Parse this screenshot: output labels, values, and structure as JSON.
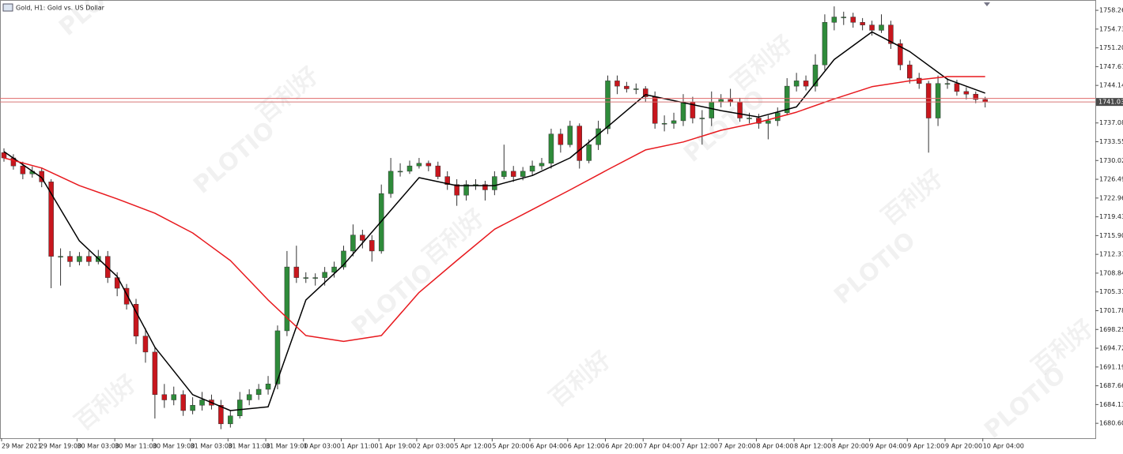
{
  "chart_data": {
    "type": "candlestick",
    "title": "Gold, H1:  Gold vs. US Dollar",
    "watermark_texts": [
      "百利好",
      "PLOTIO"
    ],
    "categories": [
      "29 Mar 2021",
      null,
      null,
      null,
      "29 Mar 19:00",
      null,
      null,
      null,
      "30 Mar 03:00",
      null,
      null,
      null,
      "30 Mar 11:00",
      null,
      null,
      null,
      "30 Mar 19:00",
      null,
      null,
      null,
      "31 Mar 03:00",
      null,
      null,
      null,
      "31 Mar 11:00",
      null,
      null,
      null,
      "31 Mar 19:00",
      null,
      null,
      null,
      "1 Apr 03:00",
      null,
      null,
      null,
      "1 Apr 11:00",
      null,
      null,
      null,
      "1 Apr 19:00",
      null,
      null,
      null,
      "2 Apr 03:00",
      null,
      null,
      null,
      "5 Apr 12:00",
      null,
      null,
      null,
      "5 Apr 20:00",
      null,
      null,
      null,
      "6 Apr 04:00",
      null,
      null,
      null,
      "6 Apr 12:00",
      null,
      null,
      null,
      "6 Apr 20:00",
      null,
      null,
      null,
      "7 Apr 04:00",
      null,
      null,
      null,
      "7 Apr 12:00",
      null,
      null,
      null,
      "7 Apr 20:00",
      null,
      null,
      null,
      "8 Apr 04:00",
      null,
      null,
      null,
      "8 Apr 12:00",
      null,
      null,
      null,
      "8 Apr 20:00",
      null,
      null,
      null,
      "9 Apr 04:00",
      null,
      null,
      null,
      "9 Apr 12:00",
      null,
      null,
      null,
      "9 Apr 20:00",
      null,
      null,
      null,
      "10 Apr 04:00"
    ],
    "open": [
      1731.5,
      1730.5,
      1729,
      1727.5,
      1728,
      1726,
      1712,
      1712,
      1711,
      1712,
      1711,
      1712,
      1708,
      1706,
      1703,
      1697,
      1694,
      1686,
      1685,
      1686,
      1683,
      1684,
      1685,
      1684,
      1680.5,
      1682,
      1685,
      1686,
      1687,
      1688,
      1698,
      1710,
      1708,
      1708,
      1708,
      1709,
      1710,
      1713,
      1716,
      1715,
      1713,
      1723.8,
      1728,
      1728,
      1729,
      1729.5,
      1729,
      1727,
      1725.5,
      1723.5,
      1725.5,
      1725.5,
      1724.5,
      1727,
      1728,
      1727,
      1728,
      1729,
      1729.5,
      1735,
      1733,
      1736.5,
      1730,
      1733,
      1736,
      1745,
      1744,
      1743.5,
      1743.5,
      1742,
      1737,
      1737,
      1737.5,
      1741,
      1738,
      1738,
      1741,
      1741.5,
      1741,
      1738,
      1738,
      1737,
      1737.5,
      1739,
      1744,
      1745,
      1744,
      1748,
      1756,
      1757,
      1757,
      1756,
      1755.5,
      1754.5,
      1755.5,
      1752,
      1748,
      1745.5,
      1744.5,
      1738,
      1744.5,
      1744.5,
      1743,
      1742.5,
      1741.5
    ],
    "high": [
      1732.3,
      1731.2,
      1729.8,
      1728.9,
      1728.7,
      1726.5,
      1713.5,
      1713,
      1712.8,
      1713,
      1713.2,
      1713,
      1709,
      1706.8,
      1704,
      1698.5,
      1695,
      1688,
      1687.5,
      1686.8,
      1685.5,
      1686.5,
      1686,
      1685,
      1683,
      1686.5,
      1687,
      1688,
      1689.5,
      1699,
      1713,
      1714,
      1709,
      1708.8,
      1710,
      1711,
      1714,
      1718,
      1717,
      1716,
      1725.5,
      1730.5,
      1729.5,
      1730,
      1730.5,
      1730,
      1729.8,
      1728,
      1726.5,
      1726.3,
      1726.5,
      1726.2,
      1728,
      1733,
      1729,
      1728.8,
      1730,
      1730.5,
      1736,
      1736,
      1737.5,
      1737,
      1734,
      1737.5,
      1746,
      1746,
      1744.8,
      1744.5,
      1744,
      1743,
      1738.5,
      1739,
      1742.5,
      1742,
      1739.5,
      1743,
      1742.5,
      1743.5,
      1741.8,
      1739,
      1738.8,
      1738.5,
      1740,
      1745.5,
      1746.5,
      1746,
      1750,
      1757.5,
      1759,
      1758,
      1757.8,
      1756.8,
      1756.3,
      1757.5,
      1756.3,
      1752.8,
      1748.8,
      1746.5,
      1745,
      1746,
      1745.5,
      1745.2,
      1743.8,
      1743,
      1742
    ],
    "low": [
      1729.8,
      1728.3,
      1726.5,
      1726.8,
      1725,
      1706,
      1706.5,
      1710,
      1710.3,
      1710.2,
      1710.5,
      1707,
      1704.5,
      1702,
      1695.5,
      1692,
      1681.5,
      1683.5,
      1684,
      1682,
      1682.3,
      1683,
      1683.2,
      1679.5,
      1679.8,
      1681.5,
      1684,
      1685,
      1686,
      1687,
      1697,
      1707,
      1707,
      1706.5,
      1706.5,
      1708,
      1709.5,
      1712,
      1713.5,
      1711,
      1712.5,
      1723,
      1727,
      1727.5,
      1728.5,
      1728,
      1726.5,
      1724.5,
      1721.5,
      1722.5,
      1724.5,
      1722.5,
      1723.5,
      1726.5,
      1726,
      1726.3,
      1727.3,
      1728.3,
      1728.5,
      1731.5,
      1732.5,
      1728.5,
      1729.5,
      1732,
      1735,
      1742.5,
      1742.8,
      1742.5,
      1741,
      1736,
      1735.5,
      1736,
      1736.5,
      1737,
      1733,
      1736.5,
      1740,
      1740.2,
      1737.3,
      1737,
      1736,
      1734,
      1736.5,
      1738.5,
      1743,
      1743.2,
      1743,
      1747,
      1754.5,
      1755.5,
      1755,
      1754.5,
      1753.5,
      1754,
      1751,
      1747,
      1744.5,
      1743.5,
      1731.5,
      1736.5,
      1743.5,
      1742.2,
      1741.5,
      1740.8,
      1740
    ],
    "close": [
      1730.5,
      1729,
      1727.5,
      1728,
      1726,
      1712,
      1712,
      1711,
      1712,
      1711,
      1712,
      1708,
      1706,
      1703,
      1697,
      1694,
      1686,
      1685,
      1686,
      1683,
      1684,
      1685,
      1684,
      1680.5,
      1682,
      1685,
      1686,
      1687,
      1688,
      1698,
      1710,
      1708,
      1708,
      1708,
      1709,
      1710,
      1713,
      1716,
      1715,
      1713,
      1723.8,
      1728,
      1728,
      1729,
      1729.5,
      1729,
      1727,
      1725.5,
      1723.5,
      1725.5,
      1725.5,
      1724.5,
      1727,
      1728,
      1727,
      1728,
      1729,
      1729.5,
      1735,
      1733,
      1736.5,
      1730,
      1733,
      1736,
      1745,
      1744,
      1743.5,
      1743.5,
      1742,
      1737,
      1737,
      1737.5,
      1741,
      1738,
      1738,
      1741,
      1741.5,
      1741,
      1738,
      1738,
      1737,
      1737.5,
      1739,
      1744,
      1745,
      1744,
      1748,
      1756,
      1757,
      1757,
      1756,
      1755.5,
      1754.5,
      1755.5,
      1752,
      1748,
      1745.5,
      1744.5,
      1738,
      1744.5,
      1744.5,
      1743,
      1742.5,
      1741.5,
      1741.03
    ],
    "up_color": "#2e8b3a",
    "down_color": "#c8161d",
    "wick_color": "#333333",
    "lines": [
      {
        "color": "#000000",
        "x": [
          0,
          4,
          8,
          12,
          16,
          20,
          24,
          28,
          32,
          36,
          40,
          44,
          48,
          52,
          56,
          60,
          64,
          68,
          72,
          76,
          80,
          84,
          88,
          92,
          96,
          100,
          104
        ],
        "values": [
          1731.7,
          1726.8,
          1714.9,
          1708.2,
          1694.9,
          1686.0,
          1683.0,
          1683.7,
          1703.8,
          1710.4,
          1718.6,
          1726.8,
          1725.3,
          1725.3,
          1727.2,
          1730.5,
          1736.4,
          1742.4,
          1740.9,
          1739.4,
          1738.2,
          1740.1,
          1749.0,
          1754.2,
          1750.5,
          1745.3,
          1742.7
        ]
      },
      {
        "color": "#e8191e",
        "x": [
          0,
          4,
          8,
          12,
          16,
          20,
          24,
          28,
          32,
          36,
          40,
          44,
          48,
          52,
          56,
          60,
          64,
          68,
          72,
          76,
          80,
          84,
          88,
          92,
          96,
          100,
          104
        ],
        "values": [
          1730.5,
          1728.6,
          1725.3,
          1722.8,
          1720.1,
          1716.4,
          1711.2,
          1703.8,
          1697.1,
          1696.0,
          1697.1,
          1705.2,
          1711.2,
          1717.1,
          1720.8,
          1724.5,
          1728.3,
          1732.0,
          1733.5,
          1735.7,
          1737.2,
          1739.1,
          1741.6,
          1743.9,
          1745.0,
          1745.8,
          1745.8
        ]
      }
    ],
    "ask_price": 1741.7,
    "last_price": 1741.03,
    "ylim": [
      1677.8,
      1760.2
    ],
    "yticks": [
      {
        "value": 1680.6,
        "label": "1680.60"
      },
      1684.13,
      1687.66,
      1691.19,
      1694.72,
      1698.25,
      1701.78,
      1705.31,
      1708.84,
      1712.37,
      {
        "value": 1715.9,
        "label": "1715.90"
      },
      1719.43,
      1722.96,
      1726.49,
      1730.02,
      1733.55,
      1737.08,
      1744.14,
      1747.67,
      {
        "value": 1751.2,
        "label": "1751.20"
      },
      1754.73,
      1758.26
    ]
  }
}
